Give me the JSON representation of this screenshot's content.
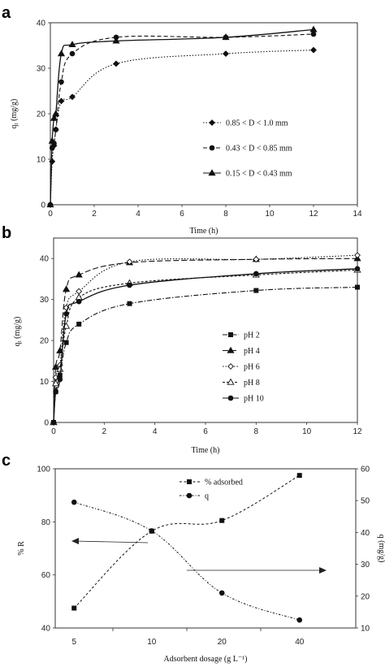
{
  "panels": [
    {
      "letter": "a"
    },
    {
      "letter": "b"
    },
    {
      "letter": "c"
    }
  ],
  "chart_data": [
    {
      "type": "line",
      "title": "",
      "xlabel": "Time (h)",
      "ylabel": "q_t (mg/g)",
      "xlim": [
        0,
        14
      ],
      "ylim": [
        0,
        40
      ],
      "xticks": [
        0,
        2,
        4,
        6,
        8,
        10,
        12,
        14
      ],
      "yticks": [
        0,
        10,
        20,
        30,
        40
      ],
      "grid": false,
      "legend_placement": "center-right",
      "series": [
        {
          "name": "0.85 < D < 1.0 mm",
          "marker": "diamond",
          "line": "dotted",
          "x": [
            0,
            0.083,
            0.167,
            0.25,
            0.5,
            1,
            3,
            8,
            12
          ],
          "y": [
            0,
            9.5,
            13.0,
            16.5,
            22.8,
            23.7,
            31.0,
            33.2,
            34.0
          ]
        },
        {
          "name": "0.43 < D < 0.85 mm",
          "marker": "circle",
          "line": "dashed",
          "x": [
            0,
            0.083,
            0.167,
            0.25,
            0.5,
            1,
            3,
            8,
            12
          ],
          "y": [
            0,
            12.5,
            13.5,
            16.5,
            27.0,
            33.2,
            36.8,
            36.8,
            37.5
          ]
        },
        {
          "name": "0.15 < D <  0.43 mm",
          "marker": "triangle",
          "line": "solid",
          "x": [
            0,
            0.083,
            0.167,
            0.25,
            0.5,
            1,
            3,
            8,
            12
          ],
          "y": [
            0,
            14.0,
            19.0,
            20.0,
            33.2,
            35.2,
            36.0,
            36.8,
            38.5
          ]
        }
      ]
    },
    {
      "type": "line",
      "title": "",
      "xlabel": "Time (h)",
      "ylabel": "q_t (mg/g)",
      "xlim": [
        0,
        12
      ],
      "ylim": [
        0,
        45
      ],
      "xticks": [
        0,
        2,
        4,
        6,
        8,
        10,
        12
      ],
      "yticks": [
        0,
        10,
        20,
        30,
        40
      ],
      "grid": false,
      "legend_placement": "center-right",
      "series": [
        {
          "name": "pH 2",
          "marker": "square",
          "line": "dashdot",
          "x": [
            0,
            0.083,
            0.25,
            0.5,
            1,
            3,
            8,
            12
          ],
          "y": [
            0,
            7.5,
            11.5,
            19.5,
            24.0,
            29.0,
            32.2,
            33.0
          ]
        },
        {
          "name": "pH 4",
          "marker": "triangle",
          "line": "longdash",
          "x": [
            0,
            0.083,
            0.25,
            0.5,
            1,
            3,
            8,
            12
          ],
          "y": [
            0,
            13.5,
            17.5,
            32.5,
            36.0,
            39.0,
            39.8,
            40.0
          ]
        },
        {
          "name": "pH 6",
          "marker": "diamond-open",
          "line": "dotted",
          "x": [
            0,
            0.083,
            0.25,
            0.5,
            1,
            3,
            8,
            12
          ],
          "y": [
            0,
            11.0,
            14.0,
            28.0,
            32.0,
            39.2,
            39.8,
            40.8
          ]
        },
        {
          "name": "pH 8",
          "marker": "triangle-open",
          "line": "finedash",
          "x": [
            0,
            0.083,
            0.25,
            0.5,
            1,
            3,
            8,
            12
          ],
          "y": [
            0,
            9.5,
            13.0,
            23.5,
            30.5,
            34.0,
            36.0,
            37.2
          ]
        },
        {
          "name": "pH 10",
          "marker": "circle",
          "line": "solid",
          "x": [
            0,
            0.083,
            0.25,
            0.5,
            1,
            3,
            8,
            12
          ],
          "y": [
            0,
            7.5,
            10.5,
            26.5,
            29.5,
            33.5,
            36.3,
            37.5
          ]
        }
      ]
    },
    {
      "type": "line",
      "title": "",
      "xlabel": "Adsorbent dosage (g L⁻¹)",
      "ylabel": "% R",
      "ylabel_right": "q (mg/g)",
      "categories": [
        "5",
        "10",
        "20",
        "40"
      ],
      "ylim": [
        40,
        100
      ],
      "yticks": [
        40,
        60,
        80,
        100
      ],
      "ylim_right": [
        10,
        60
      ],
      "yticks_right": [
        10,
        20,
        30,
        40,
        50,
        60
      ],
      "grid": false,
      "legend_placement": "top-center",
      "series": [
        {
          "name": "% adsorbed",
          "axis": "left",
          "marker": "square",
          "line": "dashed",
          "values": [
            47.5,
            76.5,
            80.5,
            97.5
          ]
        },
        {
          "name": "q",
          "axis": "right",
          "marker": "circle",
          "line": "dashdot",
          "values": [
            49.5,
            40.5,
            21.0,
            12.5
          ]
        }
      ]
    }
  ]
}
